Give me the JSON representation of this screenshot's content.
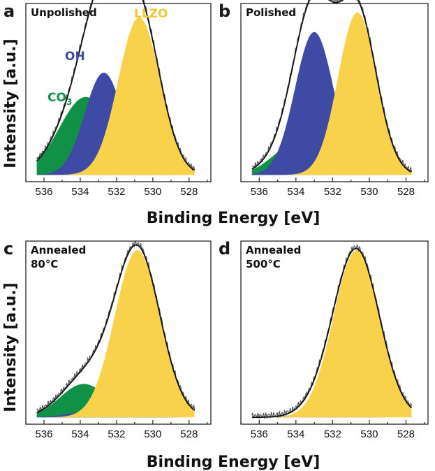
{
  "colors": {
    "CO3": "#109147",
    "OH": "#3f4aa5",
    "LLZO": "#f7d24a",
    "line": "#111111",
    "measured": "#555555"
  },
  "labels": {
    "ylabel_top": "Intensity [a.u.]",
    "ylabel_bottom": "Intensity [a.u.]",
    "xlabel_top": "Binding Energy [eV]",
    "xlabel_bottom": "Binding Energy [eV]",
    "peak_OH": "OH",
    "peak_LLZO": "LLZO",
    "peak_CO3_main": "CO",
    "peak_CO3_sub": "3"
  },
  "chart_data": [
    {
      "id": "a",
      "type": "area",
      "letter": "a",
      "title_lines": [
        "Unpolished"
      ],
      "xlabel": "Binding Energy [eV]",
      "ylabel": "Intensity [a.u.]",
      "xlim": [
        537,
        526.8
      ],
      "ylim": [
        0,
        1.05
      ],
      "xticks": [
        536,
        534,
        532,
        530,
        528
      ],
      "series": [
        {
          "name": "CO3",
          "center": 533.7,
          "height": 0.48,
          "width": 1.45
        },
        {
          "name": "OH",
          "center": 532.7,
          "height": 0.63,
          "width": 1.05
        },
        {
          "name": "LLZO",
          "center": 530.75,
          "height": 0.97,
          "width": 1.15
        }
      ],
      "baseline": 0.02
    },
    {
      "id": "b",
      "type": "area",
      "letter": "b",
      "title_lines": [
        "Polished"
      ],
      "xlabel": "Binding Energy [eV]",
      "ylabel": "Intensity [a.u.]",
      "xlim": [
        537,
        526.8
      ],
      "ylim": [
        0,
        1.05
      ],
      "xticks": [
        536,
        534,
        532,
        530,
        528
      ],
      "series": [
        {
          "name": "CO3",
          "center": 533.9,
          "height": 0.2,
          "width": 1.3
        },
        {
          "name": "OH",
          "center": 533.0,
          "height": 0.88,
          "width": 1.05
        },
        {
          "name": "LLZO",
          "center": 530.65,
          "height": 1.0,
          "width": 1.05
        }
      ],
      "baseline": 0.02
    },
    {
      "id": "c",
      "type": "area",
      "letter": "c",
      "title_lines": [
        "Annealed",
        "80°C"
      ],
      "xlabel": "Binding Energy [eV]",
      "ylabel": "Intensity [a.u.]",
      "xlim": [
        537,
        526.8
      ],
      "ylim": [
        0,
        1.05
      ],
      "xticks": [
        536,
        534,
        532,
        530,
        528
      ],
      "series": [
        {
          "name": "CO3",
          "center": 533.8,
          "height": 0.2,
          "width": 1.3
        },
        {
          "name": "OH",
          "center": 532.9,
          "height": 0.045,
          "width": 1.4
        },
        {
          "name": "LLZO",
          "center": 530.85,
          "height": 1.0,
          "width": 1.25
        }
      ],
      "baseline": 0.02
    },
    {
      "id": "d",
      "type": "area",
      "letter": "d",
      "title_lines": [
        "Annealed",
        "500°C"
      ],
      "xlabel": "Binding Energy [eV]",
      "ylabel": "Intensity [a.u.]",
      "xlim": [
        537,
        526.8
      ],
      "ylim": [
        0,
        1.05
      ],
      "xticks": [
        536,
        534,
        532,
        530,
        528
      ],
      "series": [
        {
          "name": "OH",
          "center": 532.6,
          "height": 0.045,
          "width": 1.1
        },
        {
          "name": "LLZO",
          "center": 530.7,
          "height": 1.0,
          "width": 1.25
        }
      ],
      "baseline": 0.02
    }
  ]
}
